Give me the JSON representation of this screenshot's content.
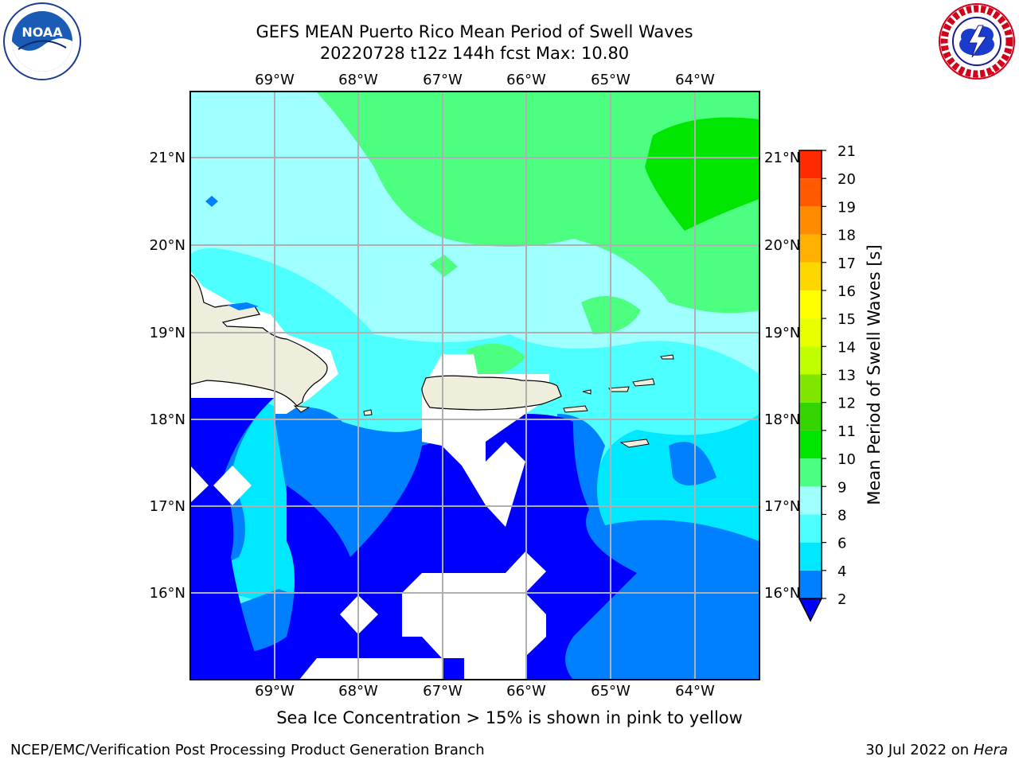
{
  "header": {
    "title_line1": "GEFS MEAN Puerto Rico Mean Period of Swell Waves",
    "title_line2": "20220728 t12z 144h fcst   Max: 10.80"
  },
  "logos": {
    "left": {
      "icon": "noaa-logo",
      "ring_text": "NATIONAL OCEANIC AND ATMOSPHERIC ADMINISTRATION · U.S. DEPARTMENT OF COMMERCE",
      "label": "NOAA"
    },
    "right": {
      "icon": "nws-logo",
      "ring_text": "NATIONAL WEATHER SERVICE"
    }
  },
  "map": {
    "lon_labels": [
      "69°W",
      "68°W",
      "67°W",
      "66°W",
      "65°W",
      "64°W"
    ],
    "lat_labels": [
      "21°N",
      "20°N",
      "19°N",
      "18°N",
      "17°N",
      "16°N"
    ],
    "grid": true,
    "colors": {
      "land": "#efeddc",
      "no_data": "#ffffff",
      "range_2_4": "#0000ff"
    }
  },
  "colorbar": {
    "label": "Mean Period of Swell Waves [s]",
    "levels": [
      2,
      4,
      6,
      8,
      9,
      10,
      11,
      12,
      13,
      14,
      15,
      16,
      17,
      18,
      19,
      20,
      21
    ],
    "tick_labels": [
      "2",
      "4",
      "6",
      "8",
      "9",
      "10",
      "11",
      "12",
      "13",
      "14",
      "15",
      "16",
      "17",
      "18",
      "19",
      "20",
      "21"
    ],
    "colors": [
      "#0080ff",
      "#00e8ff",
      "#4dffff",
      "#a0ffff",
      "#4dff80",
      "#00e600",
      "#33d400",
      "#80e600",
      "#bfff00",
      "#e8ff00",
      "#ffff00",
      "#ffd700",
      "#ffb000",
      "#ff8c00",
      "#ff5a00",
      "#ff2a00",
      "#ff0000"
    ],
    "extend_below_color": "#0000ff"
  },
  "notes": {
    "ice": "Sea Ice Concentration > 15% is shown in pink to yellow"
  },
  "footer": {
    "left": "NCEP/EMC/Verification Post Processing Product Generation Branch",
    "date": "30 Jul 2022 on ",
    "machine": "Hera"
  }
}
